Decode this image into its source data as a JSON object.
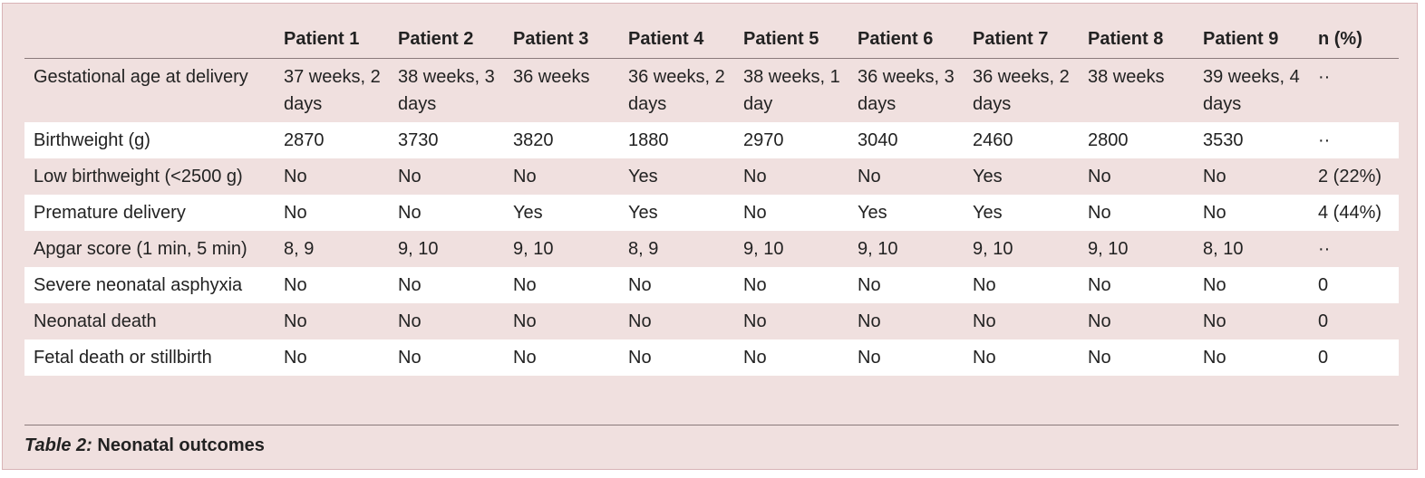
{
  "table": {
    "headers": [
      "",
      "Patient 1",
      "Patient 2",
      "Patient 3",
      "Patient 4",
      "Patient 5",
      "Patient 6",
      "Patient 7",
      "Patient 8",
      "Patient 9",
      "n (%)"
    ],
    "rows": [
      {
        "label": "Gestational age at delivery",
        "cells": [
          "37 weeks, 2 days",
          "38 weeks, 3 days",
          "36 weeks",
          "36 weeks, 2 days",
          "38 weeks, 1 day",
          "36 weeks, 3 days",
          "36 weeks, 2 days",
          "38 weeks",
          "39 weeks, 4 days",
          "··"
        ]
      },
      {
        "label": "Birthweight (g)",
        "cells": [
          "2870",
          "3730",
          "3820",
          "1880",
          "2970",
          "3040",
          "2460",
          "2800",
          "3530",
          "··"
        ]
      },
      {
        "label": "Low birthweight (<2500 g)",
        "cells": [
          "No",
          "No",
          "No",
          "Yes",
          "No",
          "No",
          "Yes",
          "No",
          "No",
          "2 (22%)"
        ]
      },
      {
        "label": "Premature delivery",
        "cells": [
          "No",
          "No",
          "Yes",
          "Yes",
          "No",
          "Yes",
          "Yes",
          "No",
          "No",
          "4 (44%)"
        ]
      },
      {
        "label": "Apgar score (1 min, 5 min)",
        "cells": [
          "8, 9",
          "9, 10",
          "9, 10",
          "8, 9",
          "9, 10",
          "9, 10",
          "9, 10",
          "9, 10",
          "8, 10",
          "··"
        ]
      },
      {
        "label": "Severe neonatal asphyxia",
        "cells": [
          "No",
          "No",
          "No",
          "No",
          "No",
          "No",
          "No",
          "No",
          "No",
          "0"
        ]
      },
      {
        "label": "Neonatal death",
        "cells": [
          "No",
          "No",
          "No",
          "No",
          "No",
          "No",
          "No",
          "No",
          "No",
          "0"
        ]
      },
      {
        "label": "Fetal death or stillbirth",
        "cells": [
          "No",
          "No",
          "No",
          "No",
          "No",
          "No",
          "No",
          "No",
          "No",
          "0"
        ]
      }
    ]
  },
  "caption": {
    "label": "Table 2:",
    "title": "Neonatal outcomes"
  }
}
